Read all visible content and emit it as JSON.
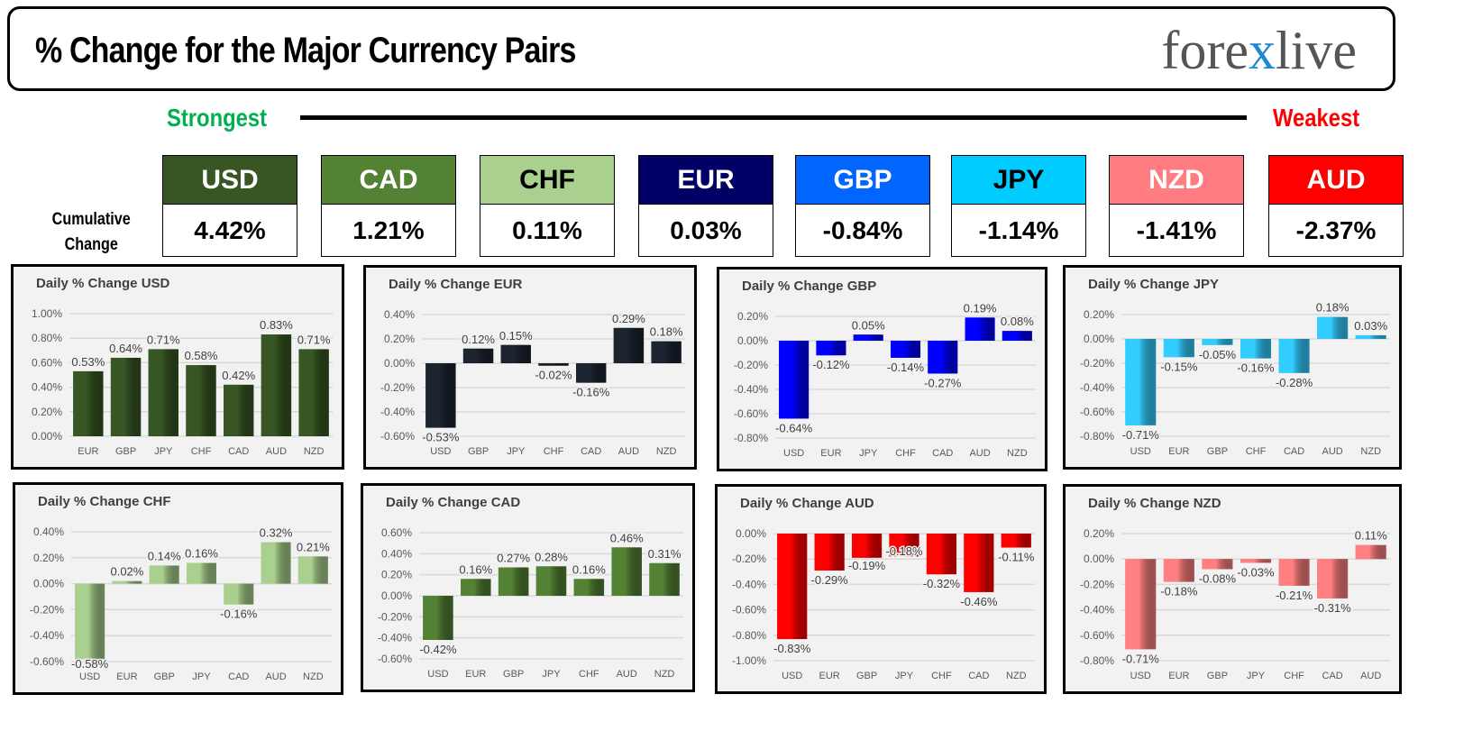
{
  "header": {
    "title": "% Change for the Major Currency Pairs",
    "logo": "forexlive"
  },
  "scale": {
    "strongest": "Strongest",
    "weakest": "Weakest"
  },
  "cumulative": {
    "label_line1": "Cumulative",
    "label_line2": "Change",
    "items": [
      {
        "currency": "USD",
        "value": "4.42%",
        "color": "#375623",
        "text": "#fff"
      },
      {
        "currency": "CAD",
        "value": "1.21%",
        "color": "#548235",
        "text": "#fff"
      },
      {
        "currency": "CHF",
        "value": "0.11%",
        "color": "#a9d08e",
        "text": "#000"
      },
      {
        "currency": "EUR",
        "value": "0.03%",
        "color": "#000066",
        "text": "#fff"
      },
      {
        "currency": "GBP",
        "value": "-0.84%",
        "color": "#0066ff",
        "text": "#fff"
      },
      {
        "currency": "JPY",
        "value": "-1.14%",
        "color": "#00ccff",
        "text": "#000"
      },
      {
        "currency": "NZD",
        "value": "-1.41%",
        "color": "#ff7c80",
        "text": "#fff"
      },
      {
        "currency": "AUD",
        "value": "-2.37%",
        "color": "#ff0000",
        "text": "#fff"
      }
    ]
  },
  "chart_data": [
    {
      "type": "bar",
      "title": "Daily % Change USD",
      "categories": [
        "EUR",
        "GBP",
        "JPY",
        "CHF",
        "CAD",
        "AUD",
        "NZD"
      ],
      "values": [
        0.53,
        0.64,
        0.71,
        0.58,
        0.42,
        0.83,
        0.71
      ],
      "ylim": [
        0,
        1.0
      ],
      "ystep": 0.2,
      "color": "#375623",
      "grid": true
    },
    {
      "type": "bar",
      "title": "Daily % Change EUR",
      "categories": [
        "USD",
        "GBP",
        "JPY",
        "CHF",
        "CAD",
        "AUD",
        "NZD"
      ],
      "values": [
        -0.53,
        0.12,
        0.15,
        -0.02,
        -0.16,
        0.29,
        0.18
      ],
      "ylim": [
        -0.6,
        0.4
      ],
      "ystep": 0.2,
      "color": "#1c2430",
      "grid": true
    },
    {
      "type": "bar",
      "title": "Daily % Change GBP",
      "categories": [
        "USD",
        "EUR",
        "JPY",
        "CHF",
        "CAD",
        "AUD",
        "NZD"
      ],
      "values": [
        -0.64,
        -0.12,
        0.05,
        -0.14,
        -0.27,
        0.19,
        0.08
      ],
      "ylim": [
        -0.8,
        0.2
      ],
      "ystep": 0.2,
      "color": "#0000ff",
      "grid": true
    },
    {
      "type": "bar",
      "title": "Daily % Change JPY",
      "categories": [
        "USD",
        "EUR",
        "GBP",
        "CHF",
        "CAD",
        "AUD",
        "NZD"
      ],
      "values": [
        -0.71,
        -0.15,
        -0.05,
        -0.16,
        -0.28,
        0.18,
        0.03
      ],
      "ylim": [
        -0.8,
        0.2
      ],
      "ystep": 0.2,
      "color": "#33ccff",
      "grid": true
    },
    {
      "type": "bar",
      "title": "Daily % Change CHF",
      "categories": [
        "USD",
        "EUR",
        "GBP",
        "JPY",
        "CAD",
        "AUD",
        "NZD"
      ],
      "values": [
        -0.58,
        0.02,
        0.14,
        0.16,
        -0.16,
        0.32,
        0.21
      ],
      "ylim": [
        -0.6,
        0.4
      ],
      "ystep": 0.2,
      "color": "#a9d08e",
      "grid": true
    },
    {
      "type": "bar",
      "title": "Daily % Change CAD",
      "categories": [
        "USD",
        "EUR",
        "GBP",
        "JPY",
        "CHF",
        "AUD",
        "NZD"
      ],
      "values": [
        -0.42,
        0.16,
        0.27,
        0.28,
        0.16,
        0.46,
        0.31
      ],
      "ylim": [
        -0.6,
        0.6
      ],
      "ystep": 0.2,
      "color": "#548235",
      "grid": true
    },
    {
      "type": "bar",
      "title": "Daily % Change AUD",
      "categories": [
        "USD",
        "EUR",
        "GBP",
        "JPY",
        "CHF",
        "CAD",
        "NZD"
      ],
      "values": [
        -0.83,
        -0.29,
        -0.19,
        -0.18,
        -0.32,
        -0.46,
        -0.11
      ],
      "ylim": [
        -1.0,
        0.0
      ],
      "ystep": 0.2,
      "color": "#ff0000",
      "grid": true
    },
    {
      "type": "bar",
      "title": "Daily % Change NZD",
      "categories": [
        "USD",
        "EUR",
        "GBP",
        "JPY",
        "CHF",
        "CAD",
        "AUD"
      ],
      "values": [
        -0.71,
        -0.18,
        -0.08,
        -0.03,
        -0.21,
        -0.31,
        0.11
      ],
      "ylim": [
        -0.8,
        0.2
      ],
      "ystep": 0.2,
      "color": "#ff8080",
      "grid": true
    }
  ]
}
